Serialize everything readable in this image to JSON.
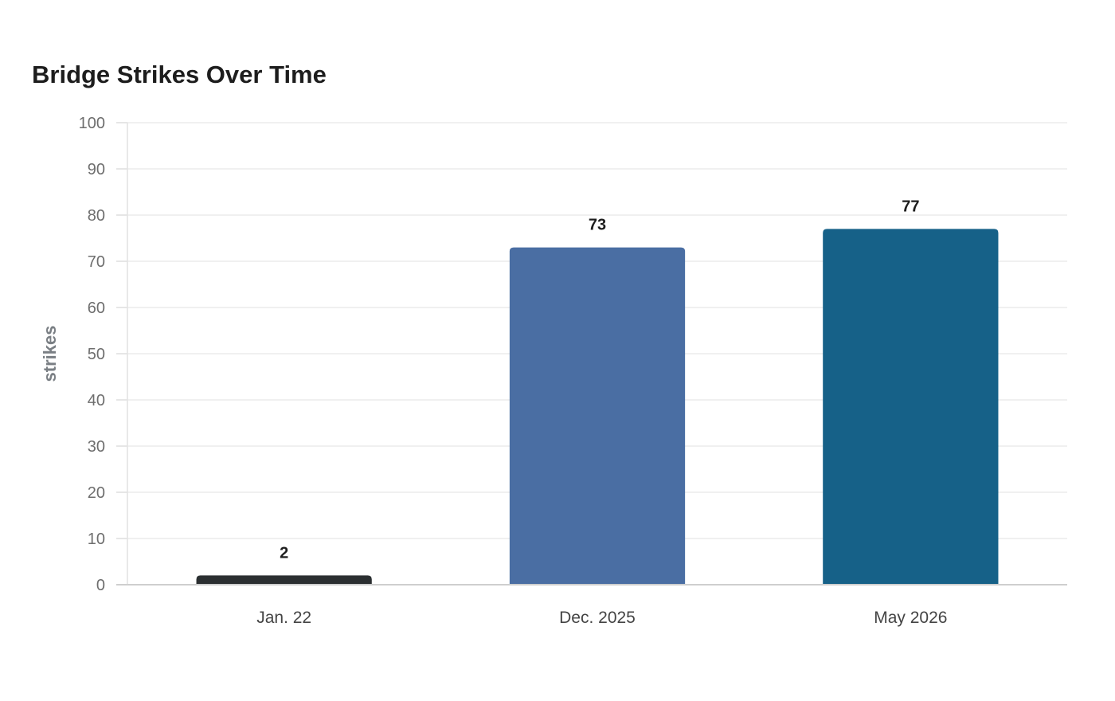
{
  "chart_data": {
    "type": "bar",
    "title": "Bridge Strikes Over Time",
    "xlabel": "",
    "ylabel": "strikes",
    "categories": [
      "Jan. 22",
      "Dec. 2025",
      "May 2026"
    ],
    "values": [
      2,
      73,
      77
    ],
    "colors": [
      "#2b2f31",
      "#4a6ea3",
      "#166188"
    ],
    "ylim": [
      0,
      100
    ],
    "yticks": [
      0,
      10,
      20,
      30,
      40,
      50,
      60,
      70,
      80,
      90,
      100
    ],
    "grid": true,
    "legend": "none"
  }
}
